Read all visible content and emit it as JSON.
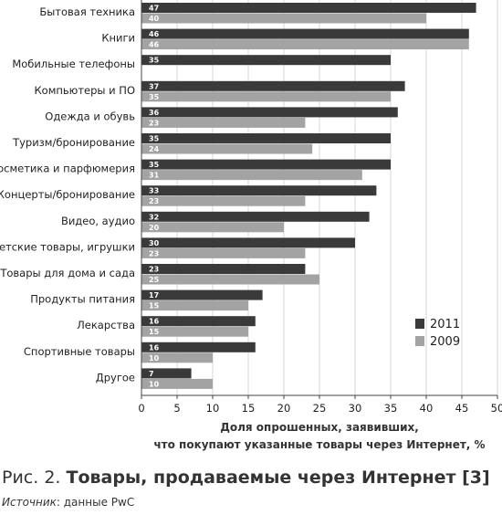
{
  "chart_data": {
    "type": "bar",
    "orientation": "horizontal",
    "categories": [
      "Бытовая техника",
      "Книги",
      "Мобильные телефоны",
      "Компьютеры и ПО",
      "Одежда и обувь",
      "Туризм/бронирование",
      "Косметика и парфюмерия",
      "Концерты/бронирование",
      "Видео, аудио",
      "Детские товары, игрушки",
      "Товары для дома и сада",
      "Продукты питания",
      "Лекарства",
      "Спортивные товары",
      "Другое"
    ],
    "series": [
      {
        "name": "2011",
        "color": "#3a3a3a",
        "values": [
          47,
          46,
          35,
          37,
          36,
          35,
          35,
          33,
          32,
          30,
          23,
          17,
          16,
          16,
          7
        ]
      },
      {
        "name": "2009",
        "color": "#a3a3a3",
        "values": [
          40,
          46,
          null,
          35,
          23,
          24,
          31,
          23,
          20,
          23,
          25,
          15,
          15,
          10,
          10
        ]
      }
    ],
    "xlim": [
      0,
      50
    ],
    "xticks": [
      0,
      5,
      10,
      15,
      20,
      25,
      30,
      35,
      40,
      45,
      50
    ],
    "xlabel_lines": [
      "Доля опрошенных, заявивших,",
      "что покупают указанные товары через Интернет, %"
    ],
    "legend_position": "right"
  },
  "caption": {
    "prefix": "Рис. 2.",
    "title": "Товары, продаваемые через Интернет [3]"
  },
  "source": {
    "label": "Источник",
    "text": ": данные PwC"
  }
}
